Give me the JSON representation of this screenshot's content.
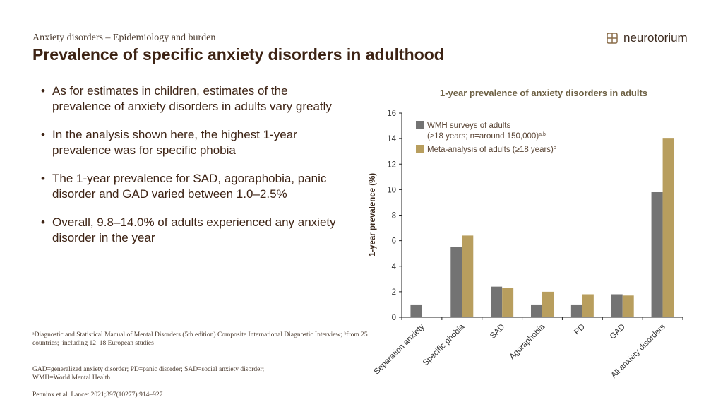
{
  "header": {
    "kicker": "Anxiety disorders – Epidemiology and burden",
    "title": "Prevalence of specific anxiety disorders in adulthood",
    "logo_text": "neurotorium"
  },
  "bullets": [
    "As for estimates in children, estimates of the prevalence of anxiety disorders in adults vary greatly",
    "In the analysis shown here, the highest 1-year prevalence was for specific phobia",
    "The 1-year prevalence for SAD, agoraphobia, panic disorder and GAD varied between 1.0–2.5%",
    "Overall, 9.8–14.0% of adults experienced any anxiety disorder in the year"
  ],
  "footnotes": {
    "sources": "ᵃDiagnostic and Statistical Manual of Mental Disorders (5th edition) Composite International Diagnostic Interview; ᵇfrom 25 countries; ᶜincluding 12–18 European studies",
    "abbreviations": "GAD=generalized anxiety disorder; PD=panic disorder; SAD=social anxiety disorder; WMH=World Mental Health",
    "reference": "Penninx et al. Lancet 2021;397(10277):914–927"
  },
  "chart_data": {
    "type": "bar",
    "title": "1-year prevalence of anxiety disorders in adults",
    "ylabel": "1-year prevalence (%)",
    "xlabel": "",
    "ylim": [
      0,
      16
    ],
    "yticks": [
      0,
      2,
      4,
      6,
      8,
      10,
      12,
      14,
      16
    ],
    "grid": false,
    "legend": "top-left",
    "categories": [
      "Separation anxiety",
      "Specific phobia",
      "SAD",
      "Agoraphobia",
      "PD",
      "GAD",
      "All anxiety disorders"
    ],
    "series": [
      {
        "name": "WMH surveys of adults (≥18 years; n=around 150,000)",
        "superscript": "a,b",
        "color": "#737373",
        "values": [
          1.0,
          5.5,
          2.4,
          1.0,
          1.0,
          1.8,
          9.8
        ]
      },
      {
        "name": "Meta-analysis of adults (≥18 years)",
        "superscript": "c",
        "color": "#b89e5e",
        "values": [
          null,
          6.4,
          2.3,
          2.0,
          1.8,
          1.7,
          14.0
        ]
      }
    ]
  }
}
